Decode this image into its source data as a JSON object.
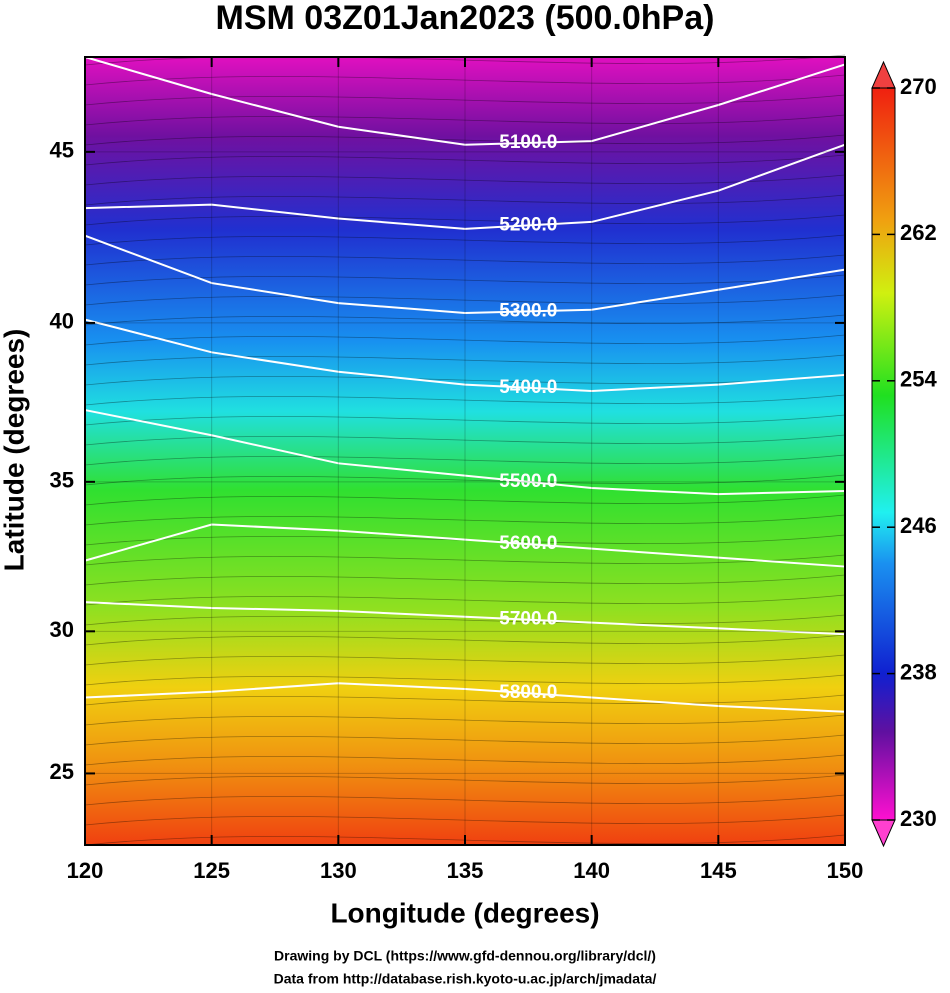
{
  "chart_data": {
    "type": "map",
    "title": "MSM 03Z01Jan2023 (500.0hPa)",
    "x_label": "Longitude (degrees)",
    "y_label": "Latitude  (degrees)",
    "projection": "mercator",
    "xlim": [
      120,
      150
    ],
    "ylim": [
      22.4,
      47.6
    ],
    "xticks": [
      120,
      125,
      130,
      135,
      140,
      145,
      150
    ],
    "yticks": [
      25,
      30,
      35,
      40,
      45
    ],
    "colorbar": {
      "lim": [
        230,
        270
      ],
      "ticks": [
        230,
        238,
        246,
        254,
        262,
        270
      ]
    },
    "contour_x": [
      120,
      125,
      130,
      135,
      140,
      145,
      150
    ],
    "contours": [
      {
        "level": {
          "value": 5100,
          "label": "5100.0"
        },
        "values": [
          47.6,
          46.6,
          45.7,
          45.2,
          45.3,
          46.3,
          47.4
        ]
      },
      {
        "level": {
          "value": 5200,
          "label": "5200.0"
        },
        "values": [
          43.4,
          43.5,
          43.1,
          42.8,
          43.0,
          43.9,
          45.2
        ]
      },
      {
        "level": {
          "value": 5300,
          "label": "5300.0"
        },
        "values": [
          42.6,
          41.2,
          40.6,
          40.3,
          40.4,
          41.0,
          41.6
        ]
      },
      {
        "level": {
          "value": 5400,
          "label": "5400.0"
        },
        "values": [
          40.1,
          39.1,
          38.5,
          38.1,
          37.9,
          38.1,
          38.4
        ]
      },
      {
        "level": {
          "value": 5500,
          "label": "5500.0"
        },
        "values": [
          37.3,
          36.5,
          35.6,
          35.2,
          34.8,
          34.6,
          34.7
        ]
      },
      {
        "level": {
          "value": 5600,
          "label": "5600.0"
        },
        "values": [
          32.4,
          33.6,
          33.4,
          33.1,
          32.8,
          32.5,
          32.2
        ]
      },
      {
        "level": {
          "value": 5700,
          "label": "5700.0"
        },
        "values": [
          31.0,
          30.8,
          30.7,
          30.5,
          30.3,
          30.1,
          29.9
        ]
      },
      {
        "level": {
          "value": 5800,
          "label": "5800.0"
        },
        "values": [
          27.7,
          27.9,
          28.2,
          28.0,
          27.7,
          27.4,
          27.2
        ]
      }
    ],
    "credits": [
      "Drawing by DCL (https://www.gfd-dennou.org/library/dcl/)",
      "Data from http://database.rish.kyoto-u.ac.jp/arch/jmadata/"
    ]
  }
}
